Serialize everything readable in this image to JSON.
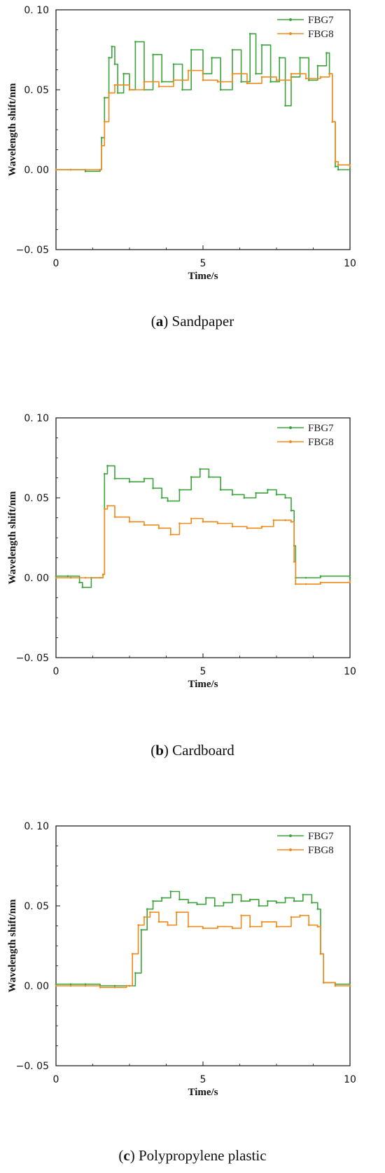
{
  "chart_data": [
    {
      "type": "line",
      "caption_letter": "a",
      "caption_text": "Sandpaper",
      "xlabel": "Time/s",
      "ylabel": "Wavelength shift/nm",
      "xlim": [
        0,
        10
      ],
      "ylim": [
        -0.05,
        0.1
      ],
      "xticks": [
        "0",
        "5",
        "10"
      ],
      "yticks": [
        "−0. 05",
        "0. 00",
        "0. 05",
        "0. 10"
      ],
      "legend": "top-right",
      "series": [
        {
          "name": "FBG7",
          "color": "#3ca33c",
          "x": [
            0,
            0.5,
            1.0,
            1.5,
            1.55,
            1.65,
            1.8,
            1.9,
            2.0,
            2.1,
            2.3,
            2.5,
            2.7,
            3.0,
            3.3,
            3.6,
            4.0,
            4.3,
            4.6,
            5.0,
            5.3,
            5.6,
            6.0,
            6.3,
            6.6,
            6.8,
            7.0,
            7.3,
            7.6,
            7.8,
            8.0,
            8.3,
            8.6,
            8.9,
            9.2,
            9.3,
            9.4,
            9.5,
            9.6,
            10.0
          ],
          "y": [
            0.0,
            0.0,
            -0.001,
            0.0,
            0.02,
            0.045,
            0.07,
            0.077,
            0.066,
            0.048,
            0.06,
            0.05,
            0.08,
            0.05,
            0.072,
            0.055,
            0.066,
            0.05,
            0.075,
            0.06,
            0.07,
            0.05,
            0.075,
            0.055,
            0.085,
            0.06,
            0.078,
            0.055,
            0.07,
            0.04,
            0.058,
            0.07,
            0.056,
            0.065,
            0.073,
            0.06,
            0.03,
            0.002,
            0.0,
            0.0
          ]
        },
        {
          "name": "FBG8",
          "color": "#f08a1c",
          "x": [
            0,
            0.5,
            1.0,
            1.5,
            1.55,
            1.65,
            1.8,
            2.0,
            2.5,
            3.0,
            3.5,
            4.0,
            4.5,
            5.0,
            5.5,
            6.0,
            6.5,
            7.0,
            7.5,
            8.0,
            8.5,
            9.0,
            9.3,
            9.4,
            9.5,
            9.6,
            10.0
          ],
          "y": [
            0.0,
            0.0,
            0.0,
            0.0,
            0.015,
            0.03,
            0.048,
            0.053,
            0.05,
            0.055,
            0.052,
            0.056,
            0.062,
            0.056,
            0.055,
            0.06,
            0.054,
            0.058,
            0.056,
            0.06,
            0.057,
            0.058,
            0.06,
            0.03,
            0.005,
            0.003,
            0.002
          ]
        }
      ]
    },
    {
      "type": "line",
      "caption_letter": "b",
      "caption_text": "Cardboard",
      "xlabel": "Time/s",
      "ylabel": "Wavelength shift/nm",
      "xlim": [
        0,
        10
      ],
      "ylim": [
        -0.05,
        0.1
      ],
      "xticks": [
        "0",
        "5",
        "10"
      ],
      "yticks": [
        "−0. 05",
        "0. 00",
        "0. 05",
        "0. 10"
      ],
      "legend": "top-right",
      "series": [
        {
          "name": "FBG7",
          "color": "#3ca33c",
          "x": [
            0,
            0.4,
            0.8,
            0.9,
            1.2,
            1.6,
            1.65,
            1.75,
            2.0,
            2.5,
            3.0,
            3.3,
            3.6,
            3.8,
            4.2,
            4.6,
            4.9,
            5.2,
            5.6,
            6.0,
            6.4,
            6.8,
            7.2,
            7.5,
            7.8,
            8.0,
            8.1,
            8.15,
            8.5,
            9.0,
            10.0
          ],
          "y": [
            0.001,
            0.001,
            -0.003,
            -0.006,
            0.0,
            0.002,
            0.065,
            0.07,
            0.062,
            0.06,
            0.062,
            0.056,
            0.05,
            0.048,
            0.055,
            0.063,
            0.068,
            0.063,
            0.055,
            0.052,
            0.05,
            0.053,
            0.055,
            0.052,
            0.05,
            0.042,
            0.02,
            0.0,
            0.0,
            0.001,
            0.0
          ]
        },
        {
          "name": "FBG8",
          "color": "#f08a1c",
          "x": [
            0,
            0.5,
            1.0,
            1.5,
            1.6,
            1.65,
            1.75,
            2.0,
            2.5,
            3.0,
            3.5,
            3.9,
            4.2,
            4.6,
            5.0,
            5.5,
            6.0,
            6.5,
            7.0,
            7.4,
            7.8,
            8.0,
            8.1,
            8.15,
            8.5,
            9.0,
            10.0
          ],
          "y": [
            0.0,
            0.0,
            0.0,
            0.0,
            0.002,
            0.043,
            0.045,
            0.038,
            0.035,
            0.033,
            0.031,
            0.027,
            0.034,
            0.037,
            0.035,
            0.034,
            0.032,
            0.031,
            0.032,
            0.036,
            0.036,
            0.035,
            0.01,
            -0.004,
            -0.004,
            -0.003,
            -0.002
          ]
        }
      ]
    },
    {
      "type": "line",
      "caption_letter": "c",
      "caption_text": "Polypropylene plastic",
      "xlabel": "Time/s",
      "ylabel": "Wavelength shift/nm",
      "xlim": [
        0,
        10
      ],
      "ylim": [
        -0.05,
        0.1
      ],
      "xticks": [
        "0",
        "5",
        "10"
      ],
      "yticks": [
        "−0. 05",
        "0. 00",
        "0. 05",
        "0. 10"
      ],
      "legend": "top-right",
      "series": [
        {
          "name": "FBG7",
          "color": "#3ca33c",
          "x": [
            0,
            0.5,
            1.0,
            1.5,
            2.0,
            2.5,
            2.7,
            2.9,
            3.1,
            3.3,
            3.6,
            3.9,
            4.2,
            4.5,
            4.8,
            5.1,
            5.4,
            5.7,
            6.0,
            6.3,
            6.6,
            6.9,
            7.2,
            7.5,
            7.8,
            8.1,
            8.4,
            8.7,
            8.9,
            9.0,
            9.1,
            9.5,
            10.0
          ],
          "y": [
            0.001,
            0.001,
            0.001,
            0.0,
            0.0,
            0.0,
            0.008,
            0.035,
            0.048,
            0.053,
            0.055,
            0.059,
            0.054,
            0.052,
            0.051,
            0.055,
            0.05,
            0.052,
            0.057,
            0.053,
            0.054,
            0.05,
            0.053,
            0.052,
            0.055,
            0.053,
            0.057,
            0.052,
            0.048,
            0.02,
            0.002,
            0.001,
            0.0
          ]
        },
        {
          "name": "FBG8",
          "color": "#f08a1c",
          "x": [
            0,
            0.5,
            1.0,
            1.5,
            2.0,
            2.4,
            2.6,
            2.8,
            3.0,
            3.2,
            3.5,
            3.8,
            4.1,
            4.5,
            5.0,
            5.5,
            6.0,
            6.3,
            6.6,
            7.0,
            7.5,
            8.0,
            8.3,
            8.6,
            8.9,
            9.0,
            9.1,
            9.5,
            10.0
          ],
          "y": [
            0.0,
            0.0,
            0.0,
            -0.001,
            -0.001,
            0.0,
            0.02,
            0.038,
            0.043,
            0.046,
            0.04,
            0.038,
            0.046,
            0.037,
            0.036,
            0.037,
            0.036,
            0.044,
            0.037,
            0.04,
            0.037,
            0.043,
            0.044,
            0.038,
            0.037,
            0.02,
            0.002,
            0.0,
            0.0
          ]
        }
      ]
    }
  ]
}
